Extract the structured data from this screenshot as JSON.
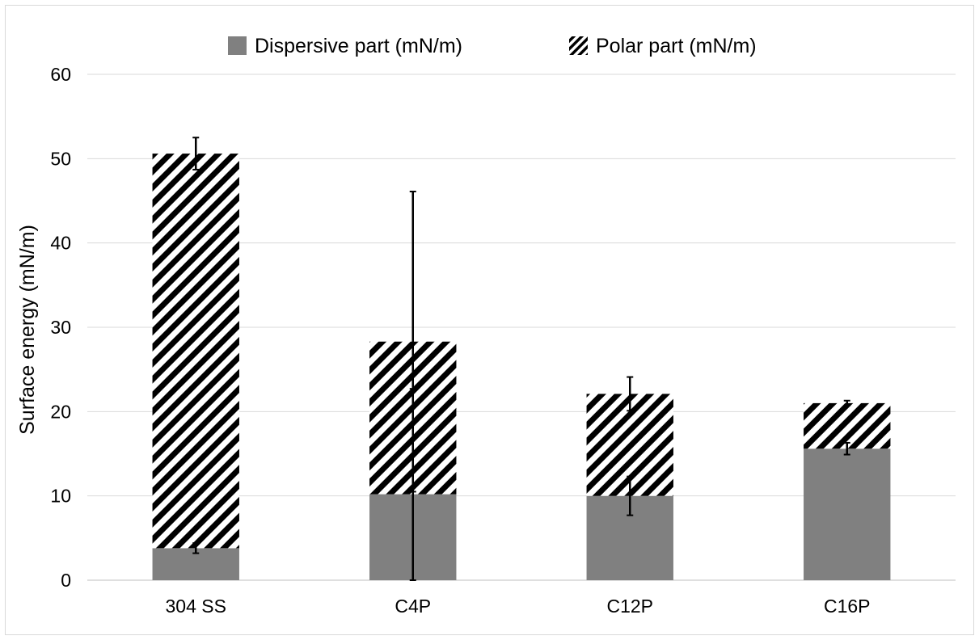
{
  "chart_data": {
    "type": "bar",
    "stacked": true,
    "categories": [
      "304 SS",
      "C4P",
      "C12P",
      "C16P"
    ],
    "series": [
      {
        "name": "Dispersive part (mN/m)",
        "fill": "solid",
        "color": "#808080",
        "values": [
          3.8,
          10.2,
          10.0,
          15.6
        ],
        "error": [
          0.6,
          12.5,
          2.3,
          0.7
        ]
      },
      {
        "name": "Polar part (mN/m)",
        "fill": "diagonal-hatch",
        "color": "#000000",
        "values": [
          46.8,
          18.1,
          12.1,
          5.4
        ],
        "error": [
          1.9,
          17.8,
          2.0,
          0.3
        ]
      }
    ],
    "ylabel": "Surface energy (mN/m)",
    "xlabel": "",
    "ylim": [
      0,
      60
    ],
    "yticks": [
      0,
      10,
      20,
      30,
      40,
      50,
      60
    ],
    "grid": true,
    "legend_position": "top"
  }
}
